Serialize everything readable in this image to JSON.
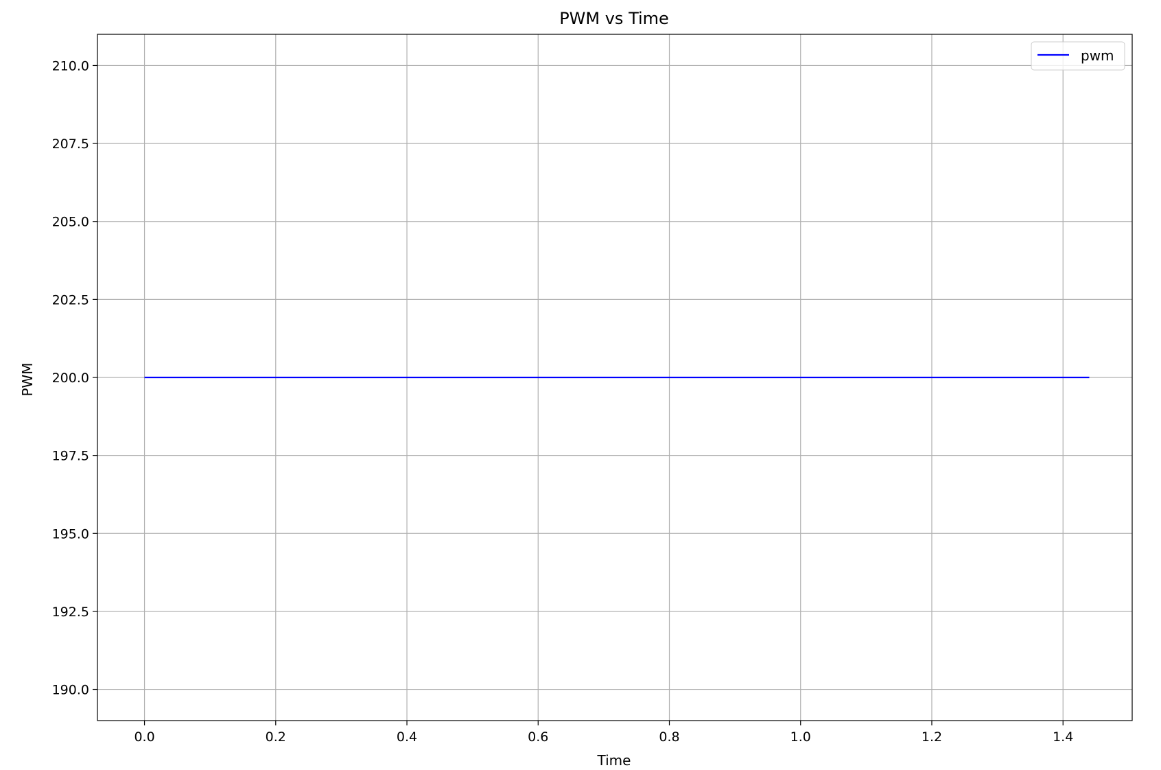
{
  "chart_data": {
    "type": "line",
    "title": "PWM vs Time",
    "xlabel": "Time",
    "ylabel": "PWM",
    "xlim": [
      -0.0717,
      1.5054
    ],
    "ylim": [
      189.0,
      211.0
    ],
    "xticks": [
      0.0,
      0.2,
      0.4,
      0.6,
      0.8,
      1.0,
      1.2,
      1.4
    ],
    "xtick_labels": [
      "0.0",
      "0.2",
      "0.4",
      "0.6",
      "0.8",
      "1.0",
      "1.2",
      "1.4"
    ],
    "yticks": [
      190.0,
      192.5,
      195.0,
      197.5,
      200.0,
      202.5,
      205.0,
      207.5,
      210.0
    ],
    "ytick_labels": [
      "190.0",
      "192.5",
      "195.0",
      "197.5",
      "200.0",
      "202.5",
      "205.0",
      "207.5",
      "210.0"
    ],
    "grid": true,
    "legend_position": "top-right",
    "series": [
      {
        "name": "pwm",
        "color": "#0000ff",
        "x": [
          0.0,
          0.2,
          0.4,
          0.6,
          0.8,
          1.0,
          1.2,
          1.4,
          1.44
        ],
        "y": [
          200.0,
          200.0,
          200.0,
          200.0,
          200.0,
          200.0,
          200.0,
          200.0,
          200.0
        ]
      }
    ],
    "colors": {
      "grid": "#b0b0b0",
      "axes": "#000000"
    }
  }
}
